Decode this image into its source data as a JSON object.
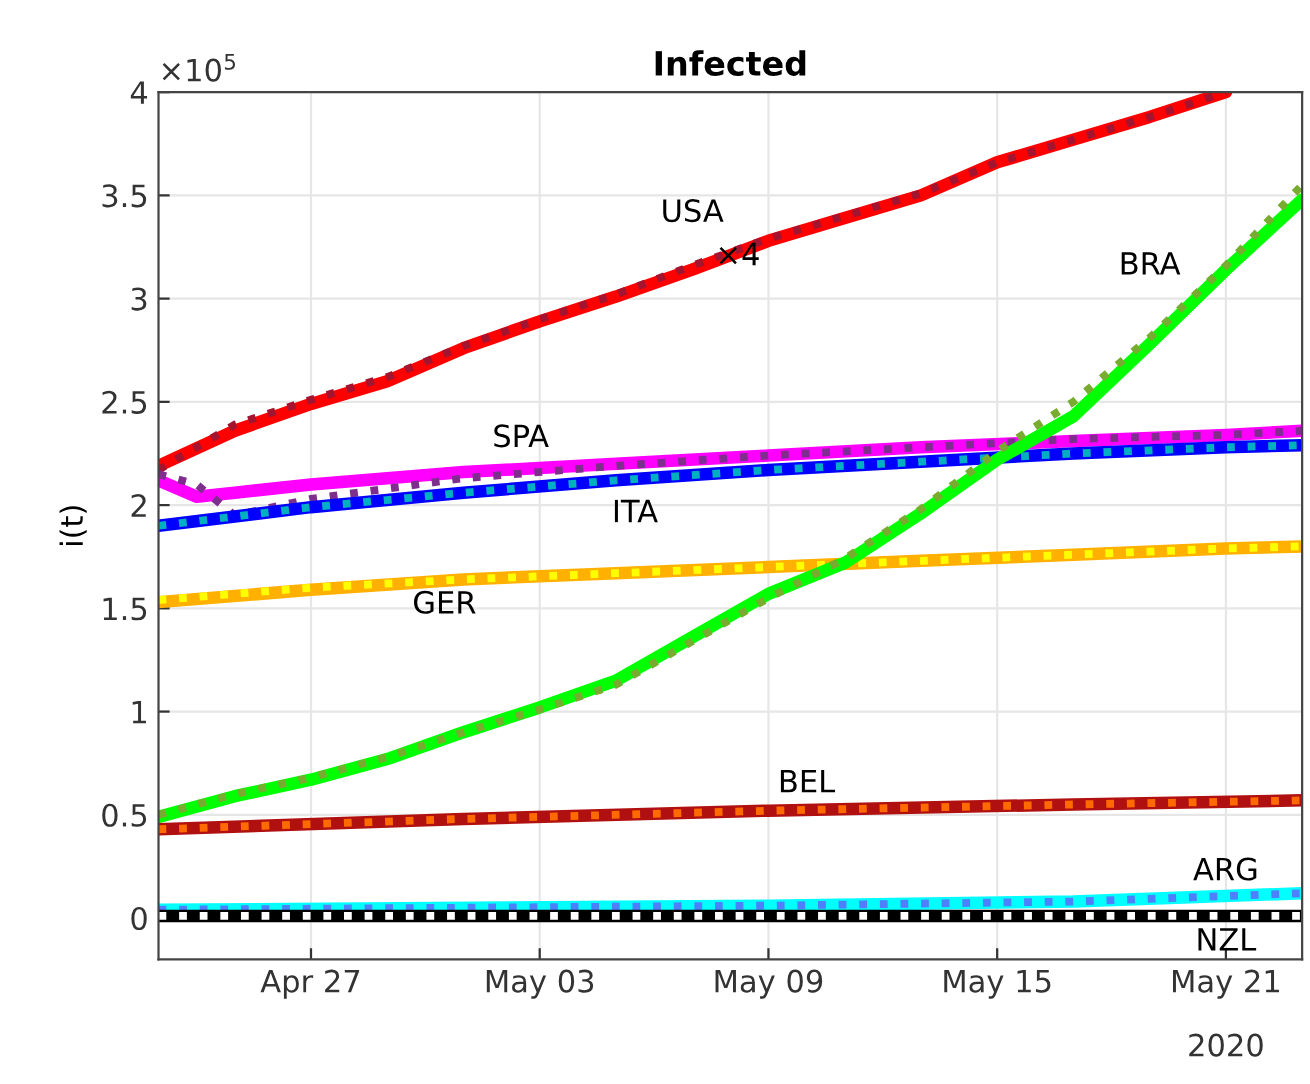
{
  "chart_data": {
    "type": "line",
    "title": "Infected",
    "ylabel": "i(t)",
    "xlim": [
      "2020-04-23",
      "2020-05-23"
    ],
    "xticks": [
      {
        "value": "2020-04-27",
        "label": "Apr 27"
      },
      {
        "value": "2020-05-03",
        "label": "May 03"
      },
      {
        "value": "2020-05-09",
        "label": "May 09"
      },
      {
        "value": "2020-05-15",
        "label": "May 15"
      },
      {
        "value": "2020-05-21",
        "label": "May 21"
      }
    ],
    "ylim": [
      -0.2,
      4
    ],
    "yticks": [
      0,
      0.5,
      1,
      1.5,
      2,
      2.5,
      3,
      3.5,
      4
    ],
    "grid": true,
    "legend": false,
    "annotations": [
      "×10$^{5}$",
      "2020",
      "×4"
    ],
    "series": [
      {
        "name": "USA",
        "color": "#ff0000",
        "line_style": "solid",
        "x": [
          "2020-04-23",
          "2020-04-25",
          "2020-04-27",
          "2020-04-29",
          "2020-05-01",
          "2020-05-03",
          "2020-05-05",
          "2020-05-07",
          "2020-05-09",
          "2020-05-11",
          "2020-05-13",
          "2020-05-15",
          "2020-05-17",
          "2020-05-19",
          "2020-05-21"
        ],
        "values": [
          2.19,
          2.36,
          2.49,
          2.6,
          2.76,
          2.89,
          3.01,
          3.14,
          3.28,
          3.39,
          3.5,
          3.66,
          3.77,
          3.88,
          4.0
        ]
      },
      {
        "color": "#a2142f",
        "line_style": "dotted",
        "x": [
          "2020-04-23",
          "2020-04-25",
          "2020-04-27",
          "2020-04-29",
          "2020-05-01",
          "2020-05-03",
          "2020-05-05",
          "2020-05-07",
          "2020-05-09",
          "2020-05-11",
          "2020-05-13",
          "2020-05-15",
          "2020-05-17",
          "2020-05-19",
          "2020-05-21"
        ],
        "values": [
          2.17,
          2.39,
          2.51,
          2.62,
          2.77,
          2.9,
          3.02,
          3.16,
          3.29,
          3.4,
          3.51,
          3.66,
          3.77,
          3.88,
          4.0
        ]
      },
      {
        "name": "SPA",
        "color": "#ff00ff",
        "line_style": "solid",
        "x": [
          "2020-04-23",
          "2020-04-24",
          "2020-04-25",
          "2020-04-27",
          "2020-05-01",
          "2020-05-05",
          "2020-05-09",
          "2020-05-13",
          "2020-05-17",
          "2020-05-21",
          "2020-05-23"
        ],
        "values": [
          2.12,
          2.04,
          2.06,
          2.1,
          2.16,
          2.2,
          2.24,
          2.28,
          2.31,
          2.34,
          2.36
        ]
      },
      {
        "color": "#7e2f8e",
        "line_style": "dotted",
        "x": [
          "2020-04-23",
          "2020-04-24",
          "2020-04-25",
          "2020-04-27",
          "2020-05-01",
          "2020-05-05",
          "2020-05-09",
          "2020-05-13",
          "2020-05-17",
          "2020-05-21",
          "2020-05-23"
        ],
        "values": [
          2.15,
          2.1,
          1.95,
          2.03,
          2.13,
          2.19,
          2.24,
          2.28,
          2.32,
          2.34,
          2.36
        ]
      },
      {
        "name": "ITA",
        "color": "#0000ff",
        "line_style": "solid",
        "x": [
          "2020-04-23",
          "2020-04-27",
          "2020-05-01",
          "2020-05-05",
          "2020-05-09",
          "2020-05-13",
          "2020-05-17",
          "2020-05-21",
          "2020-05-23"
        ],
        "values": [
          1.9,
          1.99,
          2.06,
          2.12,
          2.17,
          2.21,
          2.25,
          2.28,
          2.29
        ]
      },
      {
        "color": "#00b0c0",
        "line_style": "dotted",
        "x": [
          "2020-04-23",
          "2020-04-27",
          "2020-05-01",
          "2020-05-05",
          "2020-05-09",
          "2020-05-13",
          "2020-05-17",
          "2020-05-21",
          "2020-05-23"
        ],
        "values": [
          1.9,
          1.99,
          2.06,
          2.12,
          2.17,
          2.21,
          2.25,
          2.28,
          2.29
        ]
      },
      {
        "name": "GER",
        "color": "#ffb000",
        "line_style": "solid",
        "x": [
          "2020-04-23",
          "2020-04-27",
          "2020-05-01",
          "2020-05-05",
          "2020-05-09",
          "2020-05-13",
          "2020-05-17",
          "2020-05-21",
          "2020-05-23"
        ],
        "values": [
          1.53,
          1.59,
          1.64,
          1.67,
          1.7,
          1.73,
          1.76,
          1.79,
          1.8
        ]
      },
      {
        "color": "#ffff00",
        "line_style": "dotted",
        "x": [
          "2020-04-23",
          "2020-04-27",
          "2020-05-01",
          "2020-05-05",
          "2020-05-09",
          "2020-05-13",
          "2020-05-17",
          "2020-05-21",
          "2020-05-23"
        ],
        "values": [
          1.54,
          1.6,
          1.64,
          1.67,
          1.7,
          1.73,
          1.76,
          1.79,
          1.8
        ]
      },
      {
        "name": "BRA",
        "color": "#00ff00",
        "line_style": "solid",
        "x": [
          "2020-04-23",
          "2020-04-25",
          "2020-04-27",
          "2020-04-29",
          "2020-05-01",
          "2020-05-03",
          "2020-05-05",
          "2020-05-07",
          "2020-05-09",
          "2020-05-11",
          "2020-05-13",
          "2020-05-15",
          "2020-05-17",
          "2020-05-19",
          "2020-05-21",
          "2020-05-23"
        ],
        "values": [
          0.49,
          0.59,
          0.67,
          0.77,
          0.9,
          1.02,
          1.15,
          1.36,
          1.57,
          1.72,
          1.96,
          2.22,
          2.43,
          2.78,
          3.14,
          3.48
        ]
      },
      {
        "color": "#77ac30",
        "line_style": "dotted",
        "x": [
          "2020-04-23",
          "2020-04-25",
          "2020-04-27",
          "2020-04-29",
          "2020-05-01",
          "2020-05-03",
          "2020-05-05",
          "2020-05-07",
          "2020-05-09",
          "2020-05-11",
          "2020-05-13",
          "2020-05-15",
          "2020-05-17",
          "2020-05-19",
          "2020-05-21",
          "2020-05-23"
        ],
        "values": [
          0.5,
          0.6,
          0.68,
          0.78,
          0.9,
          1.01,
          1.13,
          1.34,
          1.55,
          1.74,
          1.98,
          2.26,
          2.5,
          2.81,
          3.16,
          3.55
        ]
      },
      {
        "name": "BEL",
        "color": "#b01010",
        "line_style": "solid",
        "x": [
          "2020-04-23",
          "2020-05-01",
          "2020-05-09",
          "2020-05-17",
          "2020-05-23"
        ],
        "values": [
          0.43,
          0.48,
          0.52,
          0.55,
          0.57
        ]
      },
      {
        "color": "#ff6a00",
        "line_style": "dotted",
        "x": [
          "2020-04-23",
          "2020-05-01",
          "2020-05-09",
          "2020-05-17",
          "2020-05-23"
        ],
        "values": [
          0.43,
          0.48,
          0.52,
          0.55,
          0.57
        ]
      },
      {
        "name": "ARG",
        "color": "#00ffff",
        "line_style": "solid",
        "x": [
          "2020-04-23",
          "2020-05-09",
          "2020-05-17",
          "2020-05-23"
        ],
        "values": [
          0.04,
          0.06,
          0.08,
          0.12
        ]
      },
      {
        "color": "#4d7fff",
        "line_style": "dotted",
        "x": [
          "2020-04-23",
          "2020-05-09",
          "2020-05-17",
          "2020-05-23"
        ],
        "values": [
          0.04,
          0.06,
          0.08,
          0.12
        ]
      },
      {
        "name": "NZL",
        "color": "#000000",
        "line_style": "solid",
        "x": [
          "2020-04-23",
          "2020-05-23"
        ],
        "values": [
          0.01,
          0.01
        ]
      },
      {
        "color": "#ffffff",
        "line_style": "dotted",
        "x": [
          "2020-04-23",
          "2020-05-23"
        ],
        "values": [
          0.01,
          0.01
        ]
      }
    ]
  }
}
